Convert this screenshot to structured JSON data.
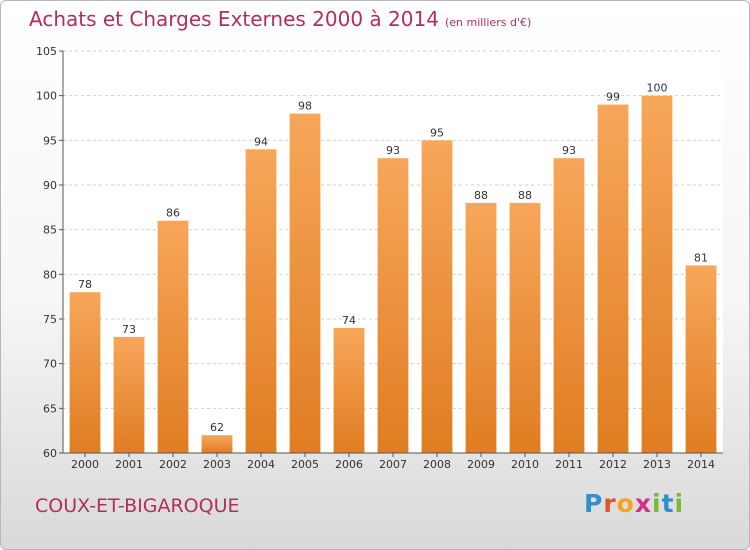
{
  "title": "Achats et Charges Externes 2000 à 2014",
  "title_unit": "(en milliers d'€)",
  "commune": "COUX-ET-BIGAROQUE",
  "logo": {
    "p": "P",
    "r": "r",
    "o": "o",
    "x": "x",
    "i": "i",
    "t": "t",
    "i2": "i"
  },
  "colors": {
    "bar_top": "#f7a65a",
    "bar_bottom": "#e07d22",
    "title": "#b0305a"
  },
  "chart_data": {
    "type": "bar",
    "categories": [
      "2000",
      "2001",
      "2002",
      "2003",
      "2004",
      "2005",
      "2006",
      "2007",
      "2008",
      "2009",
      "2010",
      "2011",
      "2012",
      "2013",
      "2014"
    ],
    "values": [
      78,
      73,
      86,
      62,
      94,
      98,
      74,
      93,
      95,
      88,
      88,
      93,
      99,
      100,
      81
    ],
    "data_labels": [
      "78",
      "73",
      "86",
      "62",
      "94",
      "98",
      "74",
      "93",
      "95",
      "88",
      "88",
      "93",
      "99",
      "100",
      "81"
    ],
    "yticks": [
      60,
      65,
      70,
      75,
      80,
      85,
      90,
      95,
      100,
      105
    ],
    "ylim": [
      60,
      105
    ],
    "grid": true
  }
}
